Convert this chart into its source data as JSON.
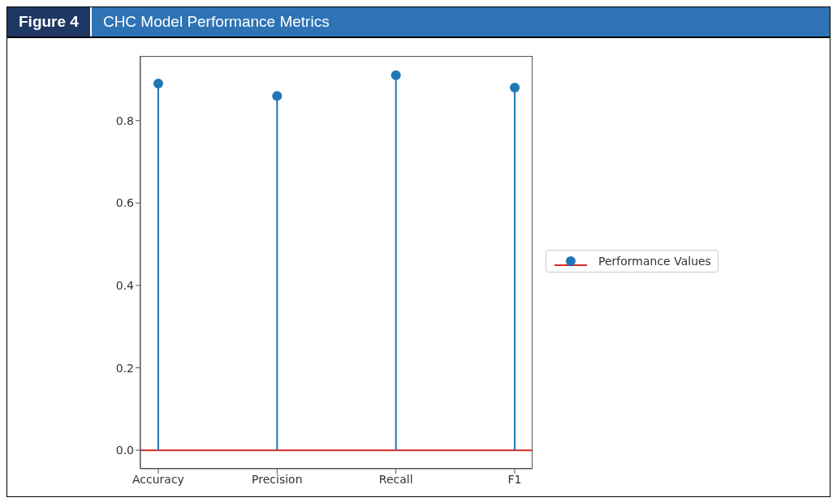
{
  "chart_data": {
    "type": "lollipop",
    "title": "CHC Model Performance Metrics",
    "annotations": [
      "Figure 4"
    ],
    "categories": [
      "Accuracy",
      "Precision",
      "Recall",
      "F1"
    ],
    "series": [
      {
        "name": "Performance Values",
        "color": "#1f77b4",
        "values": [
          0.89,
          0.86,
          0.91,
          0.88
        ]
      }
    ],
    "ylim": [
      -0.045,
      0.955
    ],
    "yticks": [
      {
        "value": 0,
        "label": "0.0"
      },
      {
        "value": 0.2,
        "label": "0.2"
      },
      {
        "value": 0.4,
        "label": "0.4"
      },
      {
        "value": 0.6,
        "label": "0.6"
      },
      {
        "value": 0.8,
        "label": "0.8"
      }
    ],
    "ref_lines": [
      {
        "axis": "y",
        "value": 0,
        "color": "#d62728"
      }
    ],
    "grid": false,
    "legend": "right",
    "marker": "circle"
  }
}
